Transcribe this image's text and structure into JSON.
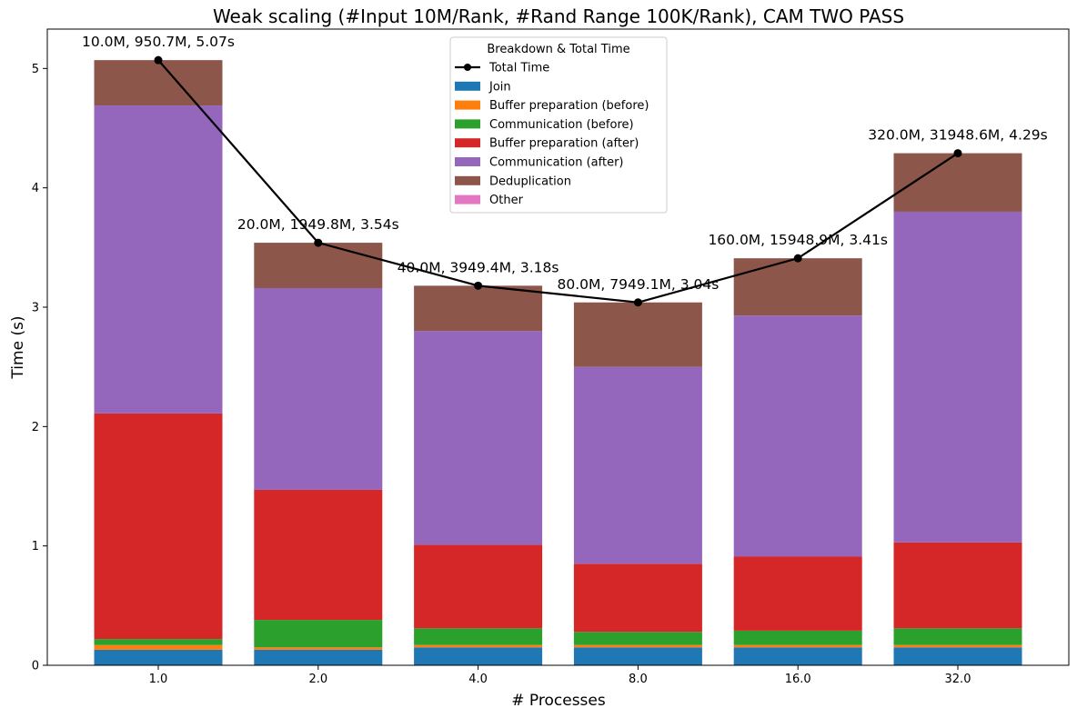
{
  "chart_data": {
    "type": "bar",
    "stacked": true,
    "title": "Weak scaling (#Input 10M/Rank, #Rand Range 100K/Rank), CAM TWO PASS",
    "xlabel": "# Processes",
    "ylabel": "Time (s)",
    "ylim": [
      0,
      5.33
    ],
    "yticks": [
      0,
      1,
      2,
      3,
      4,
      5
    ],
    "grid": false,
    "legend_placement": "top-center",
    "legend_title": "Breakdown & Total Time",
    "categories": [
      "1.0",
      "2.0",
      "4.0",
      "8.0",
      "16.0",
      "32.0"
    ],
    "series": [
      {
        "name": "Join",
        "color": "#1f77b4",
        "values": [
          0.13,
          0.13,
          0.15,
          0.15,
          0.15,
          0.15
        ]
      },
      {
        "name": "Buffer preparation (before)",
        "color": "#ff7f0e",
        "values": [
          0.04,
          0.02,
          0.02,
          0.02,
          0.02,
          0.02
        ]
      },
      {
        "name": "Communication (before)",
        "color": "#2ca02c",
        "values": [
          0.05,
          0.23,
          0.14,
          0.11,
          0.12,
          0.14
        ]
      },
      {
        "name": "Buffer preparation (after)",
        "color": "#d62728",
        "values": [
          1.89,
          1.09,
          0.7,
          0.57,
          0.62,
          0.72
        ]
      },
      {
        "name": "Communication (after)",
        "color": "#9467bd",
        "values": [
          2.58,
          1.69,
          1.79,
          1.65,
          2.02,
          2.77
        ]
      },
      {
        "name": "Deduplication",
        "color": "#8c564b",
        "values": [
          0.38,
          0.38,
          0.38,
          0.54,
          0.48,
          0.49
        ]
      },
      {
        "name": "Other",
        "color": "#e377c2",
        "values": [
          0,
          0,
          0,
          0,
          0,
          0
        ]
      }
    ],
    "line": {
      "name": "Total Time",
      "color": "#000000",
      "values": [
        5.07,
        3.54,
        3.18,
        3.04,
        3.41,
        4.29
      ]
    },
    "annotations": [
      "10.0M, 950.7M, 5.07s",
      "20.0M, 1949.8M, 3.54s",
      "40.0M, 3949.4M, 3.18s",
      "80.0M, 7949.1M, 3.04s",
      "160.0M, 15948.9M, 3.41s",
      "320.0M, 31948.6M, 4.29s"
    ]
  }
}
